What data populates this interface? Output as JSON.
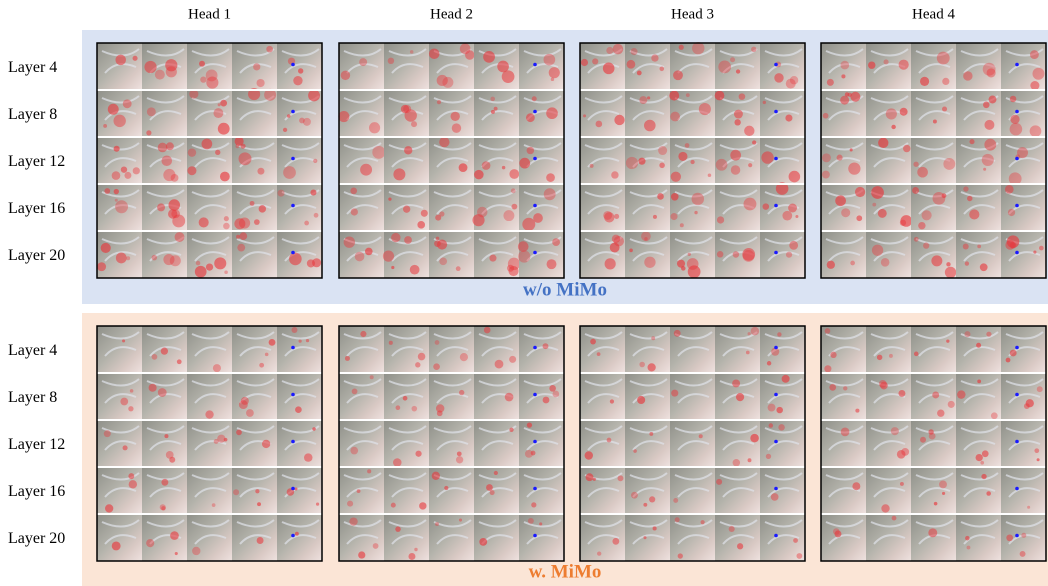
{
  "headers": [
    "Head 1",
    "Head 2",
    "Head 3",
    "Head 4"
  ],
  "panels": [
    {
      "label": "w/o MiMo",
      "rows": [
        "Layer 4",
        "Layer 8",
        "Layer 12",
        "Layer 16",
        "Layer 20"
      ]
    },
    {
      "label": "w. MiMo",
      "rows": [
        "Layer 4",
        "Layer 8",
        "Layer 12",
        "Layer 16",
        "Layer 20"
      ]
    }
  ]
}
